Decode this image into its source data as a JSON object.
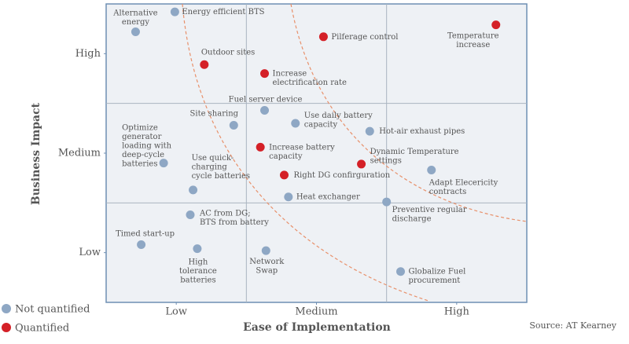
{
  "chart_data": {
    "type": "scatter",
    "x_label": "Ease of Implementation",
    "y_label": "Business Impact",
    "source": "Source: AT Kearney",
    "xlim": [
      0,
      3
    ],
    "ylim": [
      0,
      3
    ],
    "xticks": [
      {
        "value": 0.5,
        "label": "Low"
      },
      {
        "value": 1.5,
        "label": "Medium"
      },
      {
        "value": 2.5,
        "label": "High"
      }
    ],
    "yticks": [
      {
        "value": 0.5,
        "label": "Low"
      },
      {
        "value": 1.5,
        "label": "Medium"
      },
      {
        "value": 2.5,
        "label": "High"
      }
    ],
    "series": [
      {
        "name": "Not quantified",
        "color": "#8ea7c4",
        "x": [
          0.21,
          0.49,
          1.13,
          0.91,
          1.35,
          1.88,
          0.41,
          2.32,
          0.62,
          1.3,
          2.0,
          0.6,
          0.25,
          0.65,
          1.14,
          2.1
        ],
        "y": [
          2.72,
          2.92,
          1.93,
          1.78,
          1.8,
          1.72,
          1.4,
          1.33,
          1.13,
          1.06,
          1.01,
          0.88,
          0.58,
          0.54,
          0.52,
          0.31
        ],
        "labels": [
          "Alternative\nenergy",
          "Energy efficient BTS",
          "Fuel server device",
          "Site sharing",
          "Use daily battery\ncapacity",
          "Hot-air exhaust pipes",
          "Optimize\ngenerator\nloading with\ndeep-cycle\nbatteries",
          "Adapt Elecericity\ncontracts",
          "Use quick-\ncharging\ncycle batteries",
          "Heat exchanger",
          "Preventive regular\ndischarge",
          "AC from DG;\nBTS from battery",
          "Timed start-up",
          "High\ntolerance\nbatteries",
          "Network\nSwap",
          "Globalize Fuel\nprocurement"
        ]
      },
      {
        "name": "Quantified",
        "color": "#d42027",
        "x": [
          0.7,
          1.55,
          2.78,
          1.13,
          1.1,
          1.82,
          1.27
        ],
        "y": [
          2.39,
          2.67,
          2.79,
          2.3,
          1.56,
          1.39,
          1.28
        ],
        "labels": [
          "Outdoor sites",
          "Pilferage control",
          "Temperature\nincrease",
          "Increase\nelectrification rate",
          "Increase battery\ncapacity",
          "Dynamic Temperature\nsettings",
          "Right DG confirguration"
        ]
      }
    ]
  }
}
